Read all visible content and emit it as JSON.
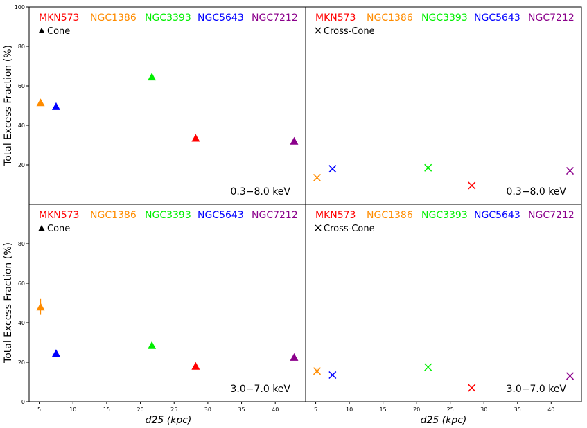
{
  "figure": {
    "ylabel": "Total Excess Fraction (%)",
    "xlabel": "d25 (kpc)",
    "legend_galaxies": [
      {
        "name": "MKN573",
        "color": "#ff0000"
      },
      {
        "name": "NGC1386",
        "color": "#ff8c00"
      },
      {
        "name": "NGC3393",
        "color": "#00ee00"
      },
      {
        "name": "NGC5643",
        "color": "#0000ff"
      },
      {
        "name": "NGC7212",
        "color": "#8b008b"
      }
    ],
    "cone_label": "Cone",
    "cross_label": "Cross-Cone",
    "band_top": "0.3−8.0 keV",
    "band_bottom": "3.0−7.0 keV"
  },
  "chart_data": [
    {
      "type": "scatter",
      "panel": "top-left",
      "marker": "triangle",
      "title": "Cone 0.3−8.0 keV",
      "xlim": [
        3.5,
        44.5
      ],
      "ylim": [
        0,
        100
      ],
      "yticks": [
        20,
        40,
        60,
        80,
        100
      ],
      "points": [
        {
          "galaxy": "MKN573",
          "x": 28.2,
          "y": 33.5
        },
        {
          "galaxy": "NGC1386",
          "x": 5.2,
          "y": 51.5
        },
        {
          "galaxy": "NGC3393",
          "x": 21.7,
          "y": 64.5
        },
        {
          "galaxy": "NGC5643",
          "x": 7.5,
          "y": 49.5
        },
        {
          "galaxy": "NGC7212",
          "x": 42.8,
          "y": 32.0
        }
      ]
    },
    {
      "type": "scatter",
      "panel": "top-right",
      "marker": "x",
      "title": "Cross-Cone 0.3−8.0 keV",
      "xlim": [
        3.5,
        44.5
      ],
      "ylim": [
        0,
        100
      ],
      "points": [
        {
          "galaxy": "MKN573",
          "x": 28.2,
          "y": 9.5
        },
        {
          "galaxy": "NGC1386",
          "x": 5.2,
          "y": 13.5
        },
        {
          "galaxy": "NGC3393",
          "x": 21.7,
          "y": 18.5
        },
        {
          "galaxy": "NGC5643",
          "x": 7.5,
          "y": 18.0
        },
        {
          "galaxy": "NGC7212",
          "x": 42.8,
          "y": 17.0
        }
      ]
    },
    {
      "type": "scatter",
      "panel": "bottom-left",
      "marker": "triangle",
      "title": "Cone 3.0−7.0 keV",
      "xlim": [
        3.5,
        44.5
      ],
      "ylim": [
        0,
        100
      ],
      "yticks": [
        0,
        20,
        40,
        60,
        80
      ],
      "xticks": [
        5,
        10,
        15,
        20,
        25,
        30,
        35,
        40
      ],
      "points": [
        {
          "galaxy": "MKN573",
          "x": 28.2,
          "y": 18.0
        },
        {
          "galaxy": "NGC1386",
          "x": 5.2,
          "y": 48.0,
          "err": 4.0
        },
        {
          "galaxy": "NGC3393",
          "x": 21.7,
          "y": 28.5
        },
        {
          "galaxy": "NGC5643",
          "x": 7.5,
          "y": 24.5
        },
        {
          "galaxy": "NGC7212",
          "x": 42.8,
          "y": 22.5
        }
      ]
    },
    {
      "type": "scatter",
      "panel": "bottom-right",
      "marker": "x",
      "title": "Cross-Cone 3.0−7.0 keV",
      "xlim": [
        3.5,
        44.5
      ],
      "ylim": [
        0,
        100
      ],
      "xticks": [
        5,
        10,
        15,
        20,
        25,
        30,
        35,
        40
      ],
      "points": [
        {
          "galaxy": "MKN573",
          "x": 28.2,
          "y": 7.0
        },
        {
          "galaxy": "NGC1386",
          "x": 5.2,
          "y": 15.5,
          "err": 1.5
        },
        {
          "galaxy": "NGC3393",
          "x": 21.7,
          "y": 17.5
        },
        {
          "galaxy": "NGC5643",
          "x": 7.5,
          "y": 13.5
        },
        {
          "galaxy": "NGC7212",
          "x": 42.8,
          "y": 13.0
        }
      ]
    }
  ]
}
